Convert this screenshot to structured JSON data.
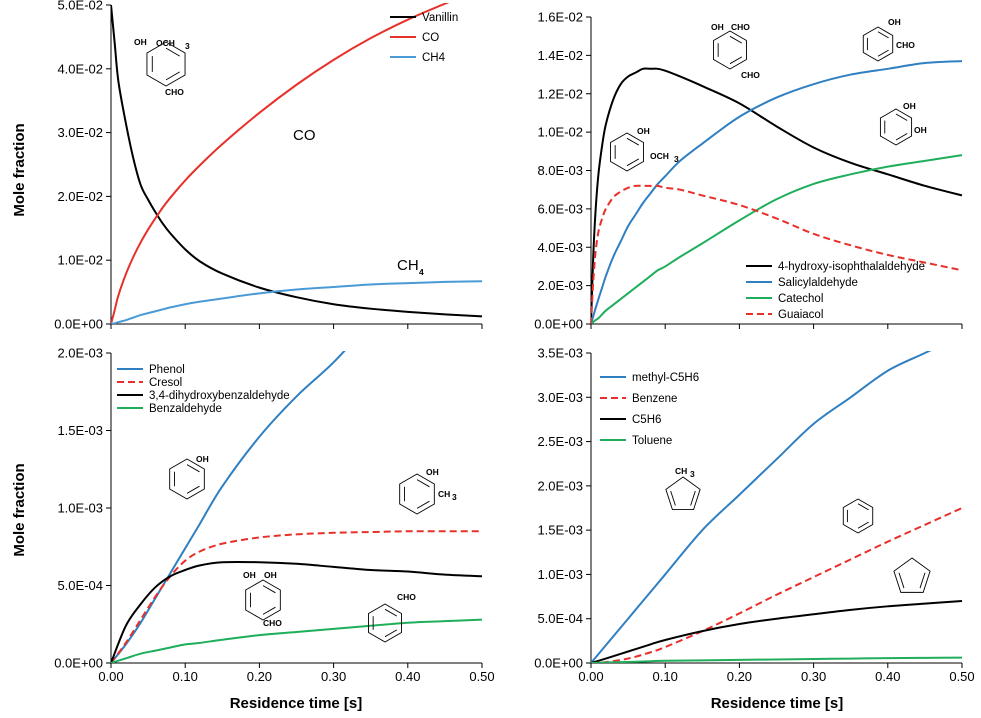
{
  "page": {
    "ylabel": "Mole fraction",
    "xlabel": "Residence time [s]"
  },
  "chart_data": [
    {
      "type": "line",
      "ylabel": "Mole fraction",
      "xlim": [
        0,
        0.5
      ],
      "ylim": [
        0,
        0.05
      ],
      "yticks": [
        "0.0E+00",
        "1.0E-02",
        "2.0E-02",
        "3.0E-02",
        "4.0E-02",
        "5.0E-02"
      ],
      "xticks": [],
      "legend_position": "top-right",
      "annotations": [
        "CO",
        "CH",
        "4"
      ],
      "chem_labels": [
        "OH",
        "OCH",
        "3",
        "CHO"
      ],
      "x": [
        0,
        0.005,
        0.01,
        0.02,
        0.03,
        0.04,
        0.05,
        0.06,
        0.07,
        0.08,
        0.1,
        0.12,
        0.15,
        0.2,
        0.25,
        0.3,
        0.35,
        0.4,
        0.45,
        0.5
      ],
      "series": [
        {
          "name": "Vanillin",
          "color": "#000000",
          "dash": "",
          "values": [
            0.05,
            0.044,
            0.038,
            0.0315,
            0.026,
            0.0218,
            0.0195,
            0.0175,
            0.0157,
            0.0142,
            0.0117,
            0.0098,
            0.0079,
            0.0057,
            0.0042,
            0.0031,
            0.0024,
            0.0019,
            0.0015,
            0.0012
          ]
        },
        {
          "name": "CO",
          "color": "#e8302a",
          "dash": "",
          "values": [
            0.0,
            0.0022,
            0.0045,
            0.0078,
            0.0105,
            0.0128,
            0.0148,
            0.0166,
            0.0183,
            0.0198,
            0.0225,
            0.0249,
            0.0282,
            0.0331,
            0.0375,
            0.0414,
            0.0448,
            0.0477,
            0.0502,
            0.0525
          ]
        },
        {
          "name": "CH4",
          "color": "#4a9ad6",
          "dash": "",
          "values": [
            0.0,
            0.0001,
            0.0003,
            0.0006,
            0.001,
            0.0014,
            0.0017,
            0.002,
            0.0023,
            0.0026,
            0.0031,
            0.0035,
            0.004,
            0.0048,
            0.0054,
            0.0058,
            0.0062,
            0.0064,
            0.0066,
            0.0067
          ]
        }
      ]
    },
    {
      "type": "line",
      "xlim": [
        0,
        0.5
      ],
      "ylim": [
        0,
        0.016
      ],
      "yticks": [
        "0.0E+00",
        "2.0E-03",
        "4.0E-03",
        "6.0E-03",
        "8.0E-03",
        "1.0E-02",
        "1.2E-02",
        "1.4E-02",
        "1.6E-02"
      ],
      "xticks": [],
      "legend_position": "bottom-right",
      "chem_labels": [
        "OH",
        "CHO",
        "CHO",
        "OH",
        "CHO",
        "OH",
        "OCH",
        "3",
        "OH",
        "OH"
      ],
      "x": [
        0,
        0.003,
        0.006,
        0.01,
        0.015,
        0.02,
        0.03,
        0.04,
        0.05,
        0.06,
        0.07,
        0.08,
        0.09,
        0.1,
        0.12,
        0.15,
        0.2,
        0.25,
        0.3,
        0.35,
        0.4,
        0.45,
        0.5
      ],
      "series": [
        {
          "name": "4-hydroxy-isophthalaldehyde",
          "color": "#000000",
          "dash": "",
          "values": [
            0.0,
            0.0035,
            0.0058,
            0.0078,
            0.0093,
            0.0104,
            0.0117,
            0.0125,
            0.0129,
            0.0131,
            0.0133,
            0.0133,
            0.0133,
            0.0132,
            0.0129,
            0.0124,
            0.0115,
            0.0103,
            0.0092,
            0.0084,
            0.0078,
            0.0072,
            0.0067
          ]
        },
        {
          "name": "Salicylaldehyde",
          "color": "#2f7fc1",
          "dash": "",
          "values": [
            0.0,
            0.0004,
            0.0008,
            0.0013,
            0.0019,
            0.0025,
            0.0035,
            0.0043,
            0.0051,
            0.0057,
            0.0063,
            0.0068,
            0.0073,
            0.0077,
            0.0085,
            0.0094,
            0.0108,
            0.0118,
            0.0125,
            0.013,
            0.0133,
            0.0136,
            0.0137
          ]
        },
        {
          "name": "Catechol",
          "color": "#1fae5c",
          "dash": "",
          "values": [
            0.0,
            0.0001,
            0.0002,
            0.0003,
            0.0005,
            0.0007,
            0.001,
            0.0013,
            0.0016,
            0.0019,
            0.0022,
            0.0025,
            0.0028,
            0.003,
            0.0035,
            0.0042,
            0.0054,
            0.0065,
            0.0073,
            0.0078,
            0.0082,
            0.0085,
            0.0088
          ]
        },
        {
          "name": "Guaiacol",
          "color": "#e8302a",
          "dash": "7,4",
          "values": [
            0.0,
            0.0022,
            0.0037,
            0.0048,
            0.0055,
            0.006,
            0.0066,
            0.0069,
            0.0071,
            0.0072,
            0.0072,
            0.0072,
            0.0072,
            0.0071,
            0.007,
            0.0067,
            0.0062,
            0.0055,
            0.0047,
            0.0041,
            0.0036,
            0.0032,
            0.0028
          ]
        }
      ]
    },
    {
      "type": "line",
      "ylabel": "Mole fraction",
      "xlabel": "Residence time [s]",
      "xlim": [
        0,
        0.5
      ],
      "ylim": [
        0,
        0.002
      ],
      "yticks": [
        "0.0E+00",
        "5.0E-04",
        "1.0E-03",
        "1.5E-03",
        "2.0E-03"
      ],
      "xticks": [
        "0.00",
        "0.10",
        "0.20",
        "0.30",
        "0.40",
        "0.50"
      ],
      "legend_position": "top-left",
      "chem_labels": [
        "OH",
        "OH",
        "CH",
        "3",
        "OH",
        "OH",
        "CHO",
        "CHO"
      ],
      "x": [
        0,
        0.02,
        0.04,
        0.06,
        0.08,
        0.1,
        0.12,
        0.15,
        0.2,
        0.25,
        0.3,
        0.35,
        0.4,
        0.45,
        0.5
      ],
      "series": [
        {
          "name": "Phenol",
          "color": "#2f7fc1",
          "dash": "",
          "values": [
            0.0,
            0.00012,
            0.00026,
            0.00042,
            0.00058,
            0.00074,
            0.0009,
            0.00114,
            0.00146,
            0.00172,
            0.00194,
            0.0022,
            null,
            null,
            null
          ]
        },
        {
          "name": "Cresol",
          "color": "#e8302a",
          "dash": "7,4",
          "values": [
            0.0,
            0.00013,
            0.00028,
            0.00043,
            0.00056,
            0.00066,
            0.00072,
            0.00077,
            0.00081,
            0.00083,
            0.00084,
            0.000845,
            0.00085,
            0.00085,
            0.00085
          ]
        },
        {
          "name": "3,4-dihydroxybenzaldehyde",
          "color": "#000000",
          "dash": "",
          "values": [
            0.0,
            0.00024,
            0.00038,
            0.00049,
            0.00056,
            0.0006,
            0.00063,
            0.00065,
            0.00065,
            0.00064,
            0.00062,
            0.0006,
            0.00059,
            0.00057,
            0.00056
          ]
        },
        {
          "name": "Benzaldehyde",
          "color": "#1fae5c",
          "dash": "",
          "values": [
            0.0,
            3e-05,
            6e-05,
            8e-05,
            0.0001,
            0.00012,
            0.00013,
            0.00015,
            0.00018,
            0.0002,
            0.00022,
            0.00024,
            0.00026,
            0.00027,
            0.00028
          ]
        }
      ]
    },
    {
      "type": "line",
      "xlabel": "Residence time [s]",
      "xlim": [
        0,
        0.5
      ],
      "ylim": [
        0,
        0.0035
      ],
      "yticks": [
        "0.0E+00",
        "5.0E-04",
        "1.0E-03",
        "1.5E-03",
        "2.0E-03",
        "2.5E-03",
        "3.0E-03",
        "3.5E-03"
      ],
      "xticks": [
        "0.00",
        "0.10",
        "0.20",
        "0.30",
        "0.40",
        "0.50"
      ],
      "legend_position": "top-left",
      "chem_labels": [
        "CH",
        "3"
      ],
      "x": [
        0,
        0.02,
        0.05,
        0.08,
        0.1,
        0.15,
        0.2,
        0.25,
        0.3,
        0.35,
        0.4,
        0.45,
        0.5
      ],
      "series": [
        {
          "name": "methyl-C5H6",
          "color": "#2f7fc1",
          "dash": "",
          "values": [
            0.0,
            0.0002,
            0.0005,
            0.0008,
            0.001,
            0.0015,
            0.0019,
            0.0023,
            0.0027,
            0.003,
            0.0033,
            0.0035,
            0.0037
          ]
        },
        {
          "name": "Benzene",
          "color": "#e8302a",
          "dash": "7,4",
          "values": [
            0.0,
            1e-05,
            5e-05,
            0.00012,
            0.00018,
            0.00036,
            0.00056,
            0.00077,
            0.00097,
            0.00117,
            0.00137,
            0.00156,
            0.00175
          ]
        },
        {
          "name": "C5H6",
          "color": "#000000",
          "dash": "",
          "values": [
            0.0,
            5e-05,
            0.00013,
            0.00021,
            0.00026,
            0.00036,
            0.00044,
            0.0005,
            0.00055,
            0.0006,
            0.00064,
            0.00067,
            0.0007
          ]
        },
        {
          "name": "Toluene",
          "color": "#1fae5c",
          "dash": "",
          "values": [
            0.0,
            5e-06,
            1.2e-05,
            2e-05,
            2.5e-05,
            3e-05,
            3.5e-05,
            4e-05,
            4.5e-05,
            5e-05,
            5.5e-05,
            5.8e-05,
            6e-05
          ]
        }
      ]
    }
  ]
}
